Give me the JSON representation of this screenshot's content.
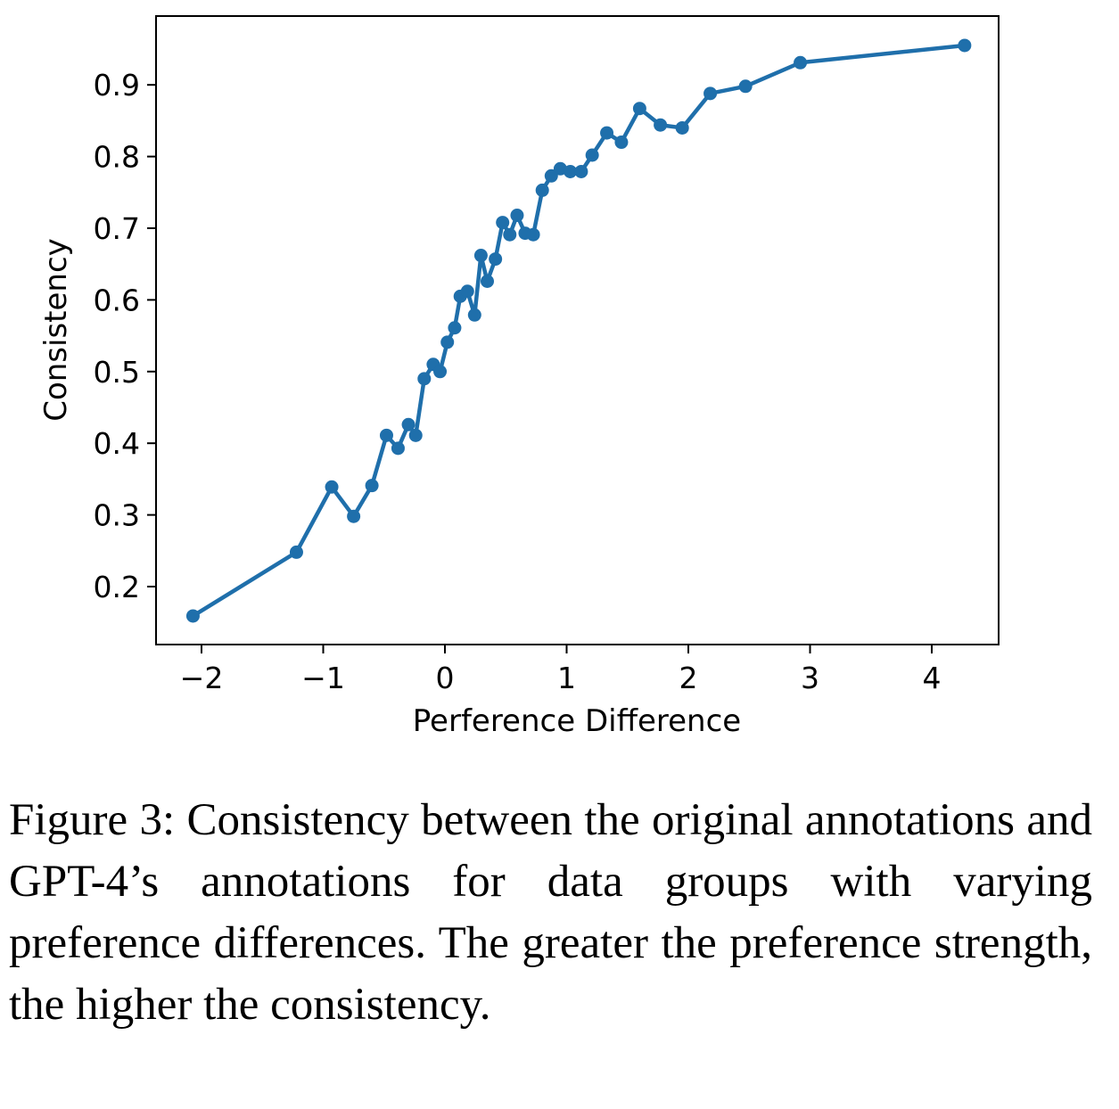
{
  "chart_data": {
    "type": "line",
    "title": "",
    "xlabel": "Perference Difference",
    "ylabel": "Consistency",
    "xlim": [
      -2.35,
      4.6
    ],
    "ylim": [
      0.12,
      0.97
    ],
    "xticks": [
      -2,
      -1,
      0,
      1,
      2,
      3,
      4
    ],
    "xtick_labels": [
      "−2",
      "−1",
      "0",
      "1",
      "2",
      "3",
      "4"
    ],
    "yticks": [
      0.2,
      0.3,
      0.4,
      0.5,
      0.6,
      0.7,
      0.8,
      0.9
    ],
    "ytick_labels": [
      "0.2",
      "0.3",
      "0.4",
      "0.5",
      "0.6",
      "0.7",
      "0.8",
      "0.9"
    ],
    "grid": false,
    "color": "#1f6fab",
    "marker": "circle",
    "x": [
      -2.07,
      -1.22,
      -0.93,
      -0.75,
      -0.6,
      -0.48,
      -0.385,
      -0.3,
      -0.24,
      -0.17,
      -0.096,
      -0.04,
      0.02,
      0.08,
      0.126,
      0.185,
      0.244,
      0.296,
      0.348,
      0.415,
      0.474,
      0.533,
      0.593,
      0.659,
      0.726,
      0.8,
      0.874,
      0.948,
      1.03,
      1.12,
      1.21,
      1.33,
      1.45,
      1.6,
      1.77,
      1.95,
      2.18,
      2.47,
      2.92,
      4.27
    ],
    "y": [
      0.159,
      0.248,
      0.339,
      0.298,
      0.341,
      0.411,
      0.393,
      0.426,
      0.411,
      0.49,
      0.51,
      0.5,
      0.541,
      0.561,
      0.605,
      0.612,
      0.579,
      0.662,
      0.626,
      0.657,
      0.708,
      0.691,
      0.718,
      0.693,
      0.691,
      0.753,
      0.773,
      0.783,
      0.779,
      0.779,
      0.802,
      0.833,
      0.82,
      0.867,
      0.844,
      0.84,
      0.888,
      0.898,
      0.931,
      0.955
    ]
  },
  "caption": "Figure 3: Consistency between the original anno­tations and GPT-4’s annotations for data groups with varying preference differences. The greater the preference strength, the higher the consis­tency."
}
